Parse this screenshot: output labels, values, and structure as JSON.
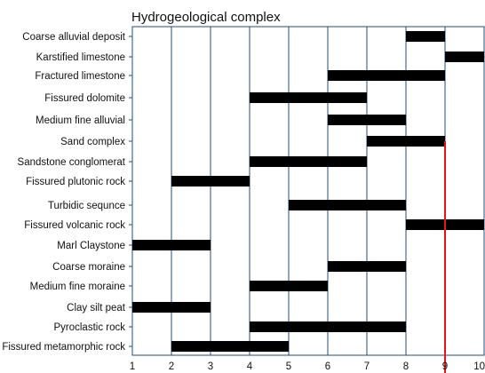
{
  "chart_data": {
    "type": "bar",
    "orientation": "horizontal-range",
    "title": "Hydrogeological complex",
    "xlabel": "",
    "ylabel": "",
    "xlim": [
      1,
      10
    ],
    "x_ticks": [
      "1",
      "2",
      "3",
      "4",
      "5",
      "6",
      "7",
      "8",
      "9",
      "10"
    ],
    "grid": "vertical",
    "categories": [
      "Coarse alluvial deposit",
      "Karstified limestone",
      "Fractured limestone",
      "Fissured dolomite",
      "Medium fine alluvial",
      "Sand complex",
      "Sandstone conglomerat",
      "Fissured plutonic rock",
      "Turbidic sequnce",
      "Fissured volcanic rock",
      "Marl Claystone",
      "Coarse moraine",
      "Medium fine moraine",
      "Clay silt peat",
      "Pyroclastic rock",
      "Fissured metamorphic rock"
    ],
    "ranges": [
      [
        8,
        9
      ],
      [
        9,
        10
      ],
      [
        6,
        9
      ],
      [
        4,
        7
      ],
      [
        6,
        8
      ],
      [
        7,
        9
      ],
      [
        4,
        7
      ],
      [
        2,
        4
      ],
      [
        5,
        8
      ],
      [
        8,
        10
      ],
      [
        1,
        3
      ],
      [
        6,
        8
      ],
      [
        4,
        6
      ],
      [
        1,
        3
      ],
      [
        4,
        8
      ],
      [
        2,
        5
      ]
    ],
    "reference_line": {
      "x": 9,
      "from_category": "Sand complex",
      "color": "#e8131a"
    },
    "colors": {
      "bar": "#000000",
      "grid": "#1f4e79",
      "reference": "#e8131a"
    }
  }
}
